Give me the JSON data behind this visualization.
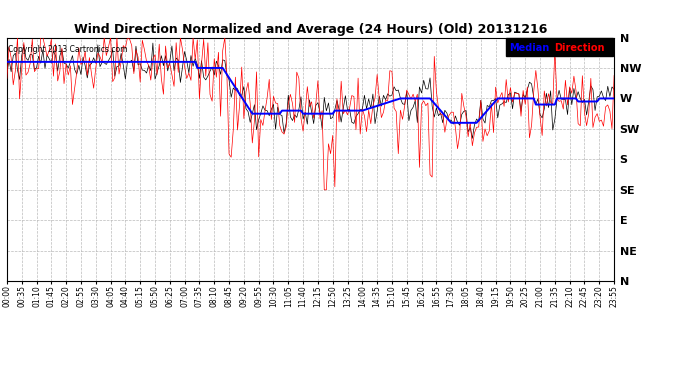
{
  "title": "Wind Direction Normalized and Average (24 Hours) (Old) 20131216",
  "copyright": "Copyright 2013 Cartronics.com",
  "ytick_labels": [
    "N",
    "NW",
    "W",
    "SW",
    "S",
    "SE",
    "E",
    "NE",
    "N"
  ],
  "ytick_values": [
    8,
    7,
    6,
    5,
    4,
    3,
    2,
    1,
    0
  ],
  "ymin": 0,
  "ymax": 8,
  "legend_bg": "black",
  "grid_color": "#bbbbbb",
  "bg_color": "white",
  "line_color_median": "blue",
  "line_color_direction": "red",
  "line_color_black": "black",
  "median_lw": 1.4,
  "direction_lw": 0.5,
  "black_lw": 0.5
}
